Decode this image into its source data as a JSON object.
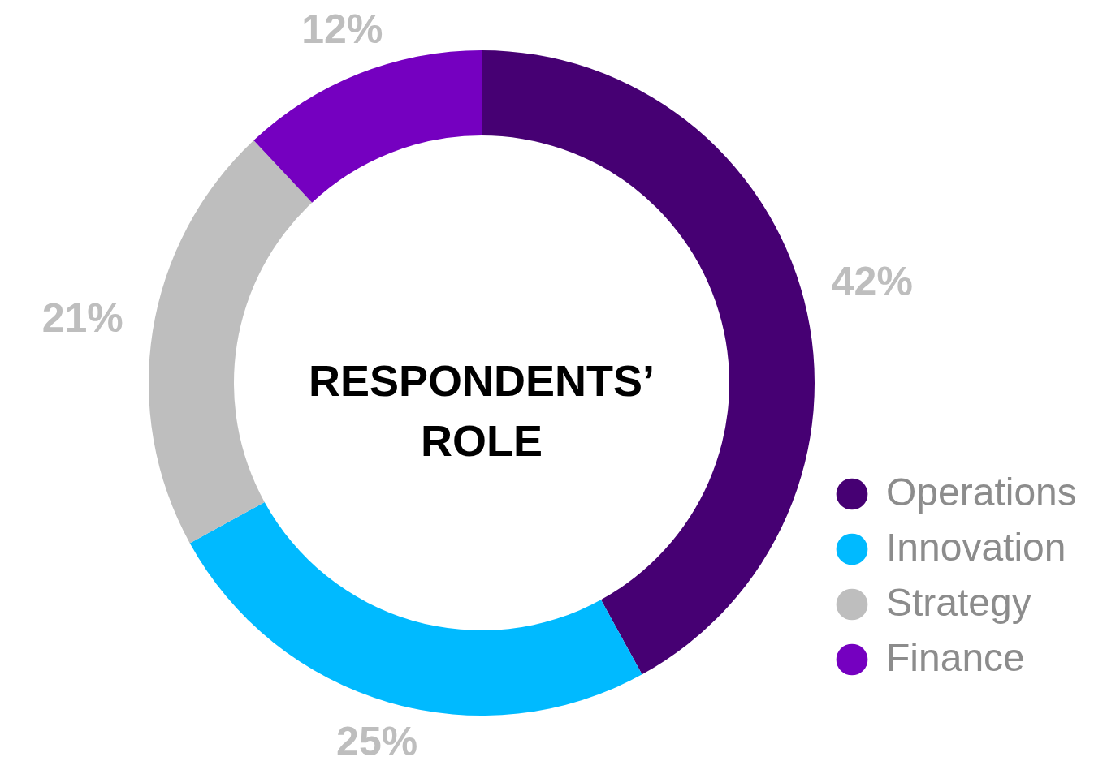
{
  "chart_data": {
    "type": "donut",
    "title": "RESPONDENTS’ ROLE",
    "categories": [
      "Operations",
      "Innovation",
      "Strategy",
      "Finance"
    ],
    "values": [
      42,
      25,
      21,
      12
    ],
    "colors": [
      "#460073",
      "#00baff",
      "#bebebe",
      "#7500c0"
    ],
    "value_labels": [
      "42%",
      "25%",
      "21%",
      "12%"
    ],
    "legend": "bottom right"
  }
}
